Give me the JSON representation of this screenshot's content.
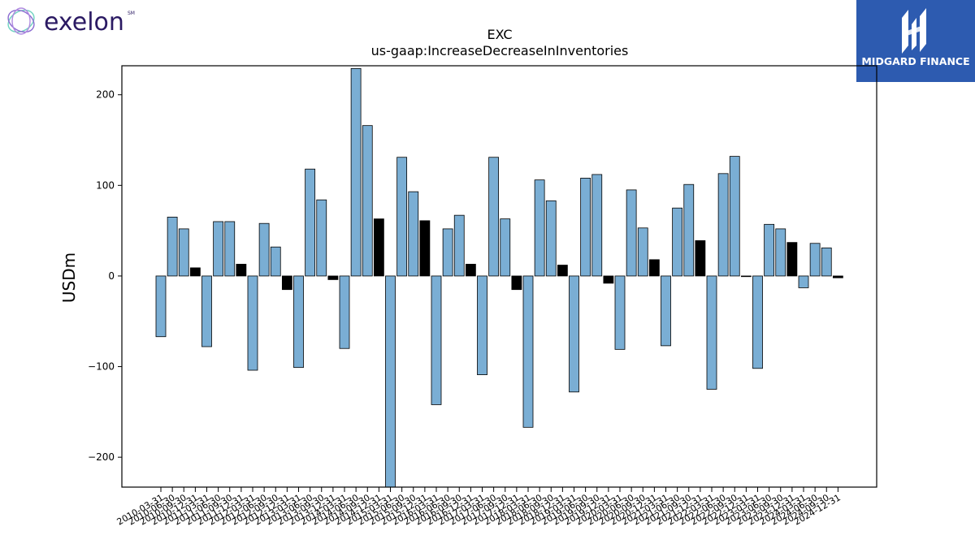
{
  "branding": {
    "left_logo_text": "exelon",
    "left_logo_mark": "SM",
    "right_logo_text": "MIDGARD FINANCE",
    "right_logo_bg": "#2d5bb0"
  },
  "chart_data": {
    "type": "bar",
    "title": "EXC",
    "subtitle": "us-gaap:IncreaseDecreaseInInventories",
    "ylabel": "USDm",
    "xlabel": "",
    "ylim": [
      -233,
      232
    ],
    "yticks": [
      -200,
      -100,
      0,
      100,
      200
    ],
    "ytick_labels": [
      "−200",
      "−100",
      "0",
      "100",
      "200"
    ],
    "grid": false,
    "colors": {
      "normal": "#7aaed4",
      "q4": "#000000",
      "edge": "#000000"
    },
    "categories": [
      "2010-03-31",
      "2010-06-30",
      "2010-09-30",
      "2010-12-31",
      "2011-03-31",
      "2011-06-30",
      "2011-09-30",
      "2011-12-31",
      "2012-03-31",
      "2012-06-30",
      "2012-09-30",
      "2012-12-31",
      "2013-03-31",
      "2013-06-30",
      "2013-09-30",
      "2013-12-31",
      "2014-03-31",
      "2014-06-30",
      "2014-09-30",
      "2014-12-31",
      "2015-03-31",
      "2015-06-30",
      "2015-09-30",
      "2015-12-31",
      "2016-03-31",
      "2016-06-30",
      "2016-09-30",
      "2016-12-31",
      "2017-03-31",
      "2017-06-30",
      "2017-09-30",
      "2017-12-31",
      "2018-03-31",
      "2018-06-30",
      "2018-09-30",
      "2018-12-31",
      "2019-03-31",
      "2019-06-30",
      "2019-09-30",
      "2019-12-31",
      "2020-03-31",
      "2020-06-30",
      "2020-09-30",
      "2020-12-31",
      "2021-03-31",
      "2021-06-30",
      "2021-09-30",
      "2021-12-31",
      "2022-03-31",
      "2022-06-30",
      "2022-09-30",
      "2022-12-31",
      "2023-03-31",
      "2023-06-30",
      "2023-09-30",
      "2023-12-31",
      "2024-03-31",
      "2024-06-30",
      "2024-09-30",
      "2024-12-31"
    ],
    "values": [
      -67,
      65,
      52,
      9,
      -78,
      60,
      60,
      13,
      -104,
      58,
      32,
      -15,
      -101,
      118,
      84,
      -4,
      -80,
      229,
      166,
      63,
      -240,
      131,
      93,
      61,
      -142,
      52,
      67,
      13,
      -109,
      131,
      63,
      -15,
      -167,
      106,
      83,
      12,
      -128,
      108,
      112,
      -8,
      -81,
      95,
      53,
      18,
      -77,
      75,
      101,
      39,
      -125,
      113,
      132,
      0,
      -102,
      57,
      52,
      37,
      -13,
      36,
      31,
      -2
    ],
    "highlight": [
      false,
      false,
      false,
      true,
      false,
      false,
      false,
      true,
      false,
      false,
      false,
      true,
      false,
      false,
      false,
      true,
      false,
      false,
      false,
      true,
      false,
      false,
      false,
      true,
      false,
      false,
      false,
      true,
      false,
      false,
      false,
      true,
      false,
      false,
      false,
      true,
      false,
      false,
      false,
      true,
      false,
      false,
      false,
      true,
      false,
      false,
      false,
      true,
      false,
      false,
      false,
      true,
      false,
      false,
      false,
      true,
      false,
      false,
      false,
      true
    ]
  }
}
